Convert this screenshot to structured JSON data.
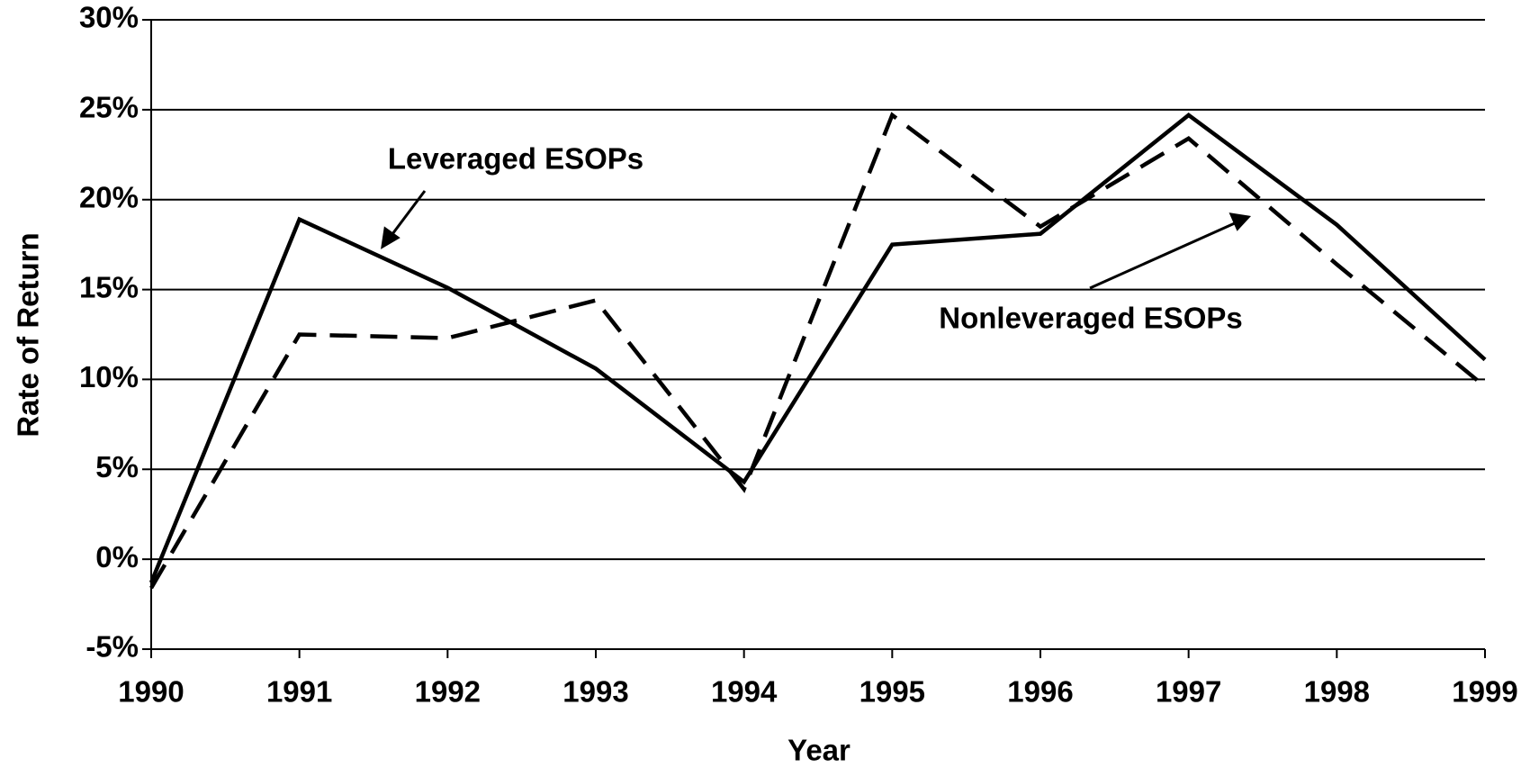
{
  "chart_data": {
    "type": "line",
    "x_label": "Year",
    "y_label": "Rate of Return",
    "x": [
      1990,
      1991,
      1992,
      1993,
      1994,
      1995,
      1996,
      1997,
      1998,
      1999
    ],
    "xlim": [
      1990,
      1999
    ],
    "xticks": [
      1990,
      1991,
      1992,
      1993,
      1994,
      1995,
      1996,
      1997,
      1998,
      1999
    ],
    "ylim": [
      -5,
      30
    ],
    "yticks": [
      {
        "value": -5,
        "label": "-5%"
      },
      {
        "value": 0,
        "label": "0%"
      },
      {
        "value": 5,
        "label": "5%"
      },
      {
        "value": 10,
        "label": "10%"
      },
      {
        "value": 15,
        "label": "15%"
      },
      {
        "value": 20,
        "label": "20%"
      },
      {
        "value": 25,
        "label": "25%"
      },
      {
        "value": 30,
        "label": "30%"
      }
    ],
    "grid": true,
    "series": [
      {
        "name": "Leveraged ESOPs",
        "color": "#000000",
        "dash": "solid",
        "values": [
          -1.3,
          18.9,
          15.1,
          10.6,
          4.3,
          17.5,
          18.1,
          24.7,
          18.6,
          11.1
        ]
      },
      {
        "name": "Nonleveraged ESOPs",
        "color": "#000000",
        "dash": "dashed",
        "values": [
          -1.6,
          12.5,
          12.3,
          14.4,
          3.9,
          24.7,
          18.5,
          23.4,
          16.4,
          9.6
        ]
      }
    ]
  }
}
